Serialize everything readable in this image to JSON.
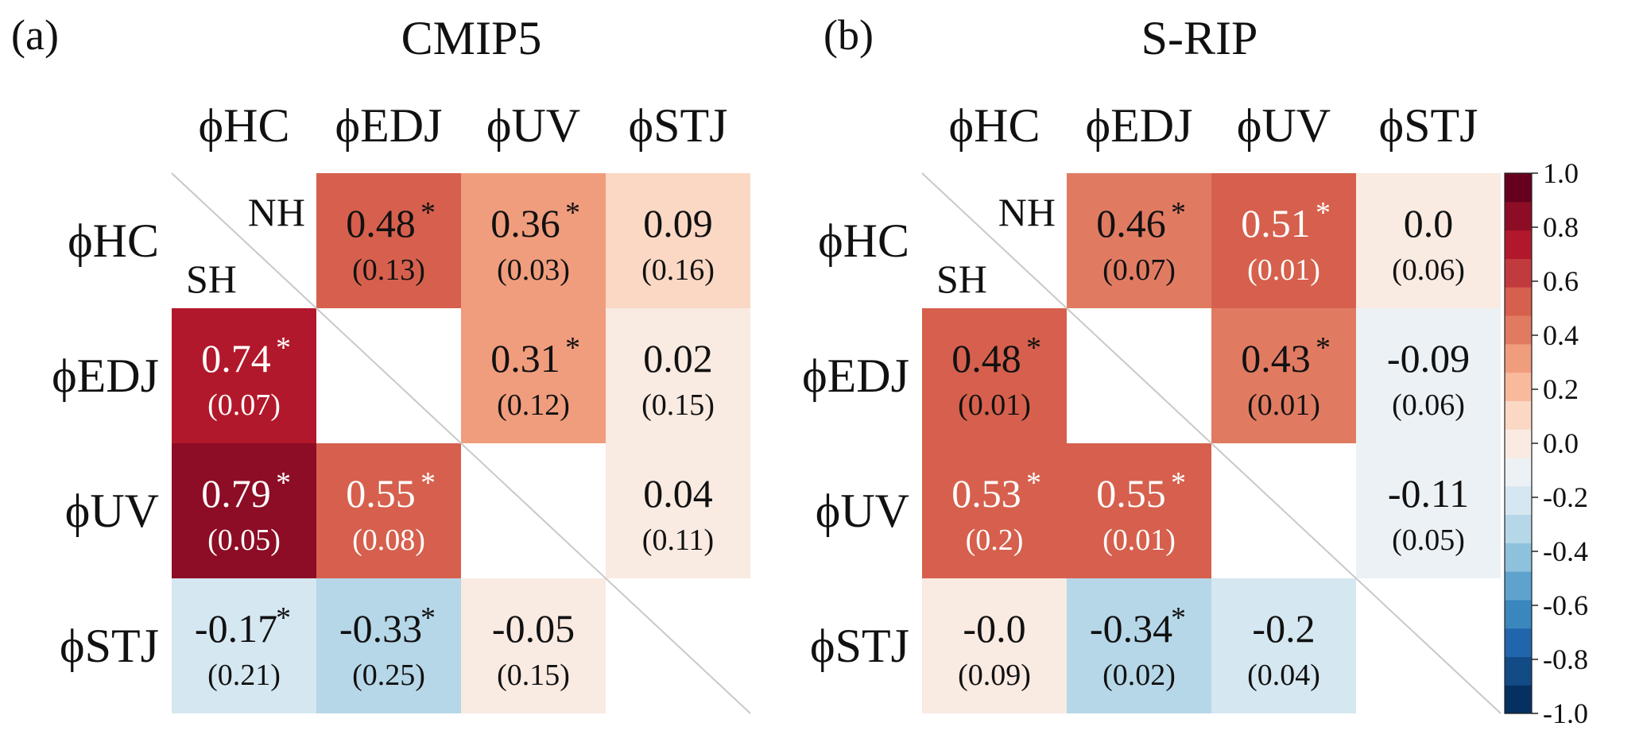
{
  "chart_data": [
    {
      "type": "heatmap",
      "panel_label": "(a)",
      "title": "CMIP5",
      "labels": [
        "ϕHC",
        "ϕEDJ",
        "ϕUV",
        "ϕSTJ"
      ],
      "upper_label": "NH",
      "lower_label": "SH",
      "values": [
        [
          null,
          "0.48",
          "0.36",
          "0.09"
        ],
        [
          "0.74",
          null,
          "0.31",
          "0.02"
        ],
        [
          "0.79",
          "0.55",
          null,
          "0.04"
        ],
        [
          "-0.17",
          "-0.33",
          "-0.05",
          null
        ]
      ],
      "spreads": [
        [
          null,
          "(0.13)",
          "(0.03)",
          "(0.16)"
        ],
        [
          "(0.07)",
          null,
          "(0.12)",
          "(0.15)"
        ],
        [
          "(0.05)",
          "(0.08)",
          null,
          "(0.11)"
        ],
        [
          "(0.21)",
          "(0.25)",
          "(0.15)",
          null
        ]
      ],
      "significant": [
        [
          false,
          true,
          true,
          false
        ],
        [
          true,
          false,
          true,
          false
        ],
        [
          true,
          true,
          false,
          false
        ],
        [
          true,
          true,
          false,
          false
        ]
      ]
    },
    {
      "type": "heatmap",
      "panel_label": "(b)",
      "title": "S-RIP",
      "labels": [
        "ϕHC",
        "ϕEDJ",
        "ϕUV",
        "ϕSTJ"
      ],
      "upper_label": "NH",
      "lower_label": "SH",
      "values": [
        [
          null,
          "0.46",
          "0.51",
          "0.0"
        ],
        [
          "0.48",
          null,
          "0.43",
          "-0.09"
        ],
        [
          "0.53",
          "0.55",
          null,
          "-0.11"
        ],
        [
          "-0.0",
          "-0.34",
          "-0.2",
          null
        ]
      ],
      "spreads": [
        [
          null,
          "(0.07)",
          "(0.01)",
          "(0.06)"
        ],
        [
          "(0.01)",
          null,
          "(0.01)",
          "(0.06)"
        ],
        [
          "(0.2)",
          "(0.01)",
          null,
          "(0.05)"
        ],
        [
          "(0.09)",
          "(0.02)",
          "(0.04)",
          null
        ]
      ],
      "significant": [
        [
          false,
          true,
          true,
          false
        ],
        [
          true,
          false,
          true,
          false
        ],
        [
          true,
          true,
          false,
          false
        ],
        [
          false,
          true,
          false,
          false
        ]
      ]
    }
  ],
  "colorbar": {
    "vmin": -1.0,
    "vmax": 1.0,
    "ticks": [
      "1.0",
      "0.8",
      "0.6",
      "0.4",
      "0.2",
      "0.0",
      "-0.2",
      "-0.4",
      "-0.6",
      "-0.8",
      "-1.0"
    ],
    "colors": [
      "#053061",
      "#134b87",
      "#2166ac",
      "#3a87bd",
      "#5ea3ce",
      "#8ec1dc",
      "#b6d7e8",
      "#d5e7f1",
      "#ecf1f5",
      "#f9eae2",
      "#fbd8c4",
      "#f8b99c",
      "#f09d7d",
      "#e07b62",
      "#d6604d",
      "#c13a3e",
      "#b2182b",
      "#8c0d25",
      "#67001f"
    ]
  },
  "star_symbol": "*"
}
